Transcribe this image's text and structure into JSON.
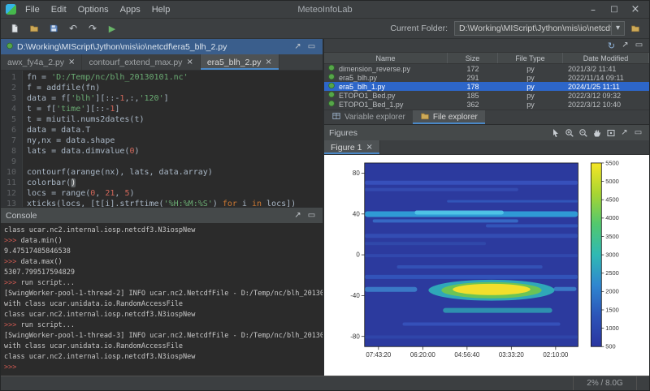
{
  "window": {
    "title": "MeteoInfoLab",
    "menus": [
      "File",
      "Edit",
      "Options",
      "Apps",
      "Help"
    ],
    "controls": [
      {
        "name": "minimize",
        "icon": "window-min"
      },
      {
        "name": "maximize",
        "icon": "window-max"
      },
      {
        "name": "close",
        "icon": "window-close"
      }
    ]
  },
  "toolbar": {
    "buttons": [
      "new-file",
      "open-folder",
      "save",
      "undo",
      "redo",
      "run"
    ],
    "current_folder_label": "Current Folder:",
    "current_folder_path": "D:\\Working\\MIScript\\Jython\\mis\\io\\netcdf"
  },
  "editor": {
    "title": "D:\\Working\\MIScript\\Jython\\mis\\io\\netcdf\\era5_blh_2.py",
    "header_icons": [
      "float",
      "maximize"
    ],
    "tabs": [
      {
        "label": "awx_fy4a_2.py",
        "active": false
      },
      {
        "label": "contourf_extend_max.py",
        "active": false
      },
      {
        "label": "era5_blh_2.py",
        "active": true
      }
    ],
    "code": [
      {
        "n": 1,
        "tokens": [
          [
            "fn = ",
            "p"
          ],
          [
            "'D:/Temp/nc/blh_20130101.nc'",
            "s"
          ]
        ]
      },
      {
        "n": 2,
        "tokens": [
          [
            "f = addfile(fn)",
            "p"
          ]
        ]
      },
      {
        "n": 3,
        "tokens": [
          [
            "data = f[",
            "p"
          ],
          [
            "'blh'",
            "s"
          ],
          [
            "][::-",
            "p"
          ],
          [
            "1",
            "n"
          ],
          [
            ",:,",
            "p"
          ],
          [
            "'120'",
            "s"
          ],
          [
            "]",
            "p"
          ]
        ]
      },
      {
        "n": 4,
        "tokens": [
          [
            "t = f[",
            "p"
          ],
          [
            "'time'",
            "s"
          ],
          [
            "][::-",
            "p"
          ],
          [
            "1",
            "n"
          ],
          [
            "]",
            "p"
          ]
        ]
      },
      {
        "n": 5,
        "tokens": [
          [
            "t = miutil.nums2dates(t)",
            "p"
          ]
        ]
      },
      {
        "n": 6,
        "tokens": [
          [
            "data = data.T",
            "p"
          ]
        ]
      },
      {
        "n": 7,
        "tokens": [
          [
            "ny,nx = data.shape",
            "p"
          ]
        ]
      },
      {
        "n": 8,
        "tokens": [
          [
            "lats = data.dimvalue(",
            "p"
          ],
          [
            "0",
            "n"
          ],
          [
            ")",
            "p"
          ]
        ]
      },
      {
        "n": 9,
        "tokens": []
      },
      {
        "n": 10,
        "tokens": [
          [
            "contourf(arange(nx), lats, data.array)",
            "p"
          ]
        ]
      },
      {
        "n": 11,
        "tokens": [
          [
            "colorbar(",
            "p"
          ],
          [
            ")",
            "c"
          ]
        ]
      },
      {
        "n": 12,
        "tokens": [
          [
            "locs = range(",
            "p"
          ],
          [
            "0",
            "n"
          ],
          [
            ", ",
            "p"
          ],
          [
            "21",
            "n"
          ],
          [
            ", ",
            "p"
          ],
          [
            "5",
            "n"
          ],
          [
            ")",
            "p"
          ]
        ]
      },
      {
        "n": 13,
        "tokens": [
          [
            "xticks(locs, [t[i].strftime(",
            "p"
          ],
          [
            "'%H:%M:%S'",
            "s"
          ],
          [
            ") ",
            "p"
          ],
          [
            "for",
            "k"
          ],
          [
            " i ",
            "p"
          ],
          [
            "in",
            "k"
          ],
          [
            " locs])",
            "p"
          ]
        ]
      }
    ]
  },
  "console": {
    "title": "Console",
    "header_icons": [
      "float",
      "maximize"
    ],
    "prompt_prefix": ">>> ",
    "lines": [
      {
        "prompt": false,
        "text": "class ucar.nc2.internal.iosp.netcdf3.N3iospNew"
      },
      {
        "prompt": true,
        "text": "data.min()"
      },
      {
        "prompt": false,
        "text": "9.47517485846538"
      },
      {
        "prompt": true,
        "text": "data.max()"
      },
      {
        "prompt": false,
        "text": "5307.799517594829"
      },
      {
        "prompt": true,
        "text": "run script..."
      },
      {
        "prompt": false,
        "text": "[SwingWorker-pool-1-thread-2] INFO ucar.nc2.NetcdfFile - D:/Temp/nc/blh_20130101"
      },
      {
        "prompt": false,
        "text": "with class ucar.unidata.io.RandomAccessFile"
      },
      {
        "prompt": false,
        "text": "class ucar.nc2.internal.iosp.netcdf3.N3iospNew"
      },
      {
        "prompt": true,
        "text": "run script..."
      },
      {
        "prompt": false,
        "text": "[SwingWorker-pool-1-thread-3] INFO ucar.nc2.NetcdfFile - D:/Temp/nc/blh_20130101"
      },
      {
        "prompt": false,
        "text": "with class ucar.unidata.io.RandomAccessFile"
      },
      {
        "prompt": false,
        "text": "class ucar.nc2.internal.iosp.netcdf3.N3iospNew"
      },
      {
        "prompt": true,
        "text": ""
      }
    ]
  },
  "file_explorer": {
    "header_icons": [
      "refresh",
      "float",
      "maximize"
    ],
    "columns": [
      "Name",
      "Size",
      "File Type",
      "Date Modified"
    ],
    "rows": [
      {
        "name": "dimension_reverse.py",
        "size": "172",
        "type": "py",
        "date": "2021/3/2 11:41",
        "selected": false
      },
      {
        "name": "era5_blh.py",
        "size": "291",
        "type": "py",
        "date": "2022/11/14 09:11",
        "selected": false
      },
      {
        "name": "era5_blh_1.py",
        "size": "178",
        "type": "py",
        "date": "2024/1/25 11:11",
        "selected": true
      },
      {
        "name": "ETOPO1_Bed.py",
        "size": "185",
        "type": "py",
        "date": "2022/3/12 09:32",
        "selected": false
      },
      {
        "name": "ETOPO1_Bed_1.py",
        "size": "362",
        "type": "py",
        "date": "2022/3/12 10:40",
        "selected": false
      }
    ],
    "dock_tabs": [
      {
        "label": "Variable explorer",
        "icon": "table",
        "active": false
      },
      {
        "label": "File explorer",
        "icon": "open-folder",
        "active": true
      }
    ]
  },
  "figures": {
    "title": "Figures",
    "header_icons": [
      "cursor",
      "zoom-in",
      "zoom-out",
      "pan-hand",
      "full-extent",
      "float",
      "maximize"
    ],
    "tabs": [
      {
        "label": "Figure 1",
        "active": true
      }
    ],
    "plot": {
      "type": "contourf",
      "ylim": [
        -90,
        90
      ],
      "yticks": [
        80,
        40,
        0,
        -40,
        -80
      ],
      "xticks": [
        "07:43:20",
        "06:20:00",
        "04:56:40",
        "03:33:20",
        "02:10:00"
      ],
      "colorbar_ticks": [
        5500,
        5000,
        4500,
        4000,
        3500,
        3000,
        2500,
        2000,
        1500,
        1000,
        500
      ],
      "colorbar_range": [
        500,
        5500
      ],
      "palette": {
        "bg": "#2c3a9e",
        "blob_outer": "#2fa8b8",
        "blob_mid": "#6cc455",
        "blob_core": "#f2df2c",
        "colorbar": [
          "#f6e626",
          "#a8d532",
          "#52c86e",
          "#2fb9b4",
          "#2f86d0",
          "#2c54b8",
          "#2a35a0"
        ]
      }
    }
  },
  "status": {
    "memory": "2% / 8.0G"
  }
}
